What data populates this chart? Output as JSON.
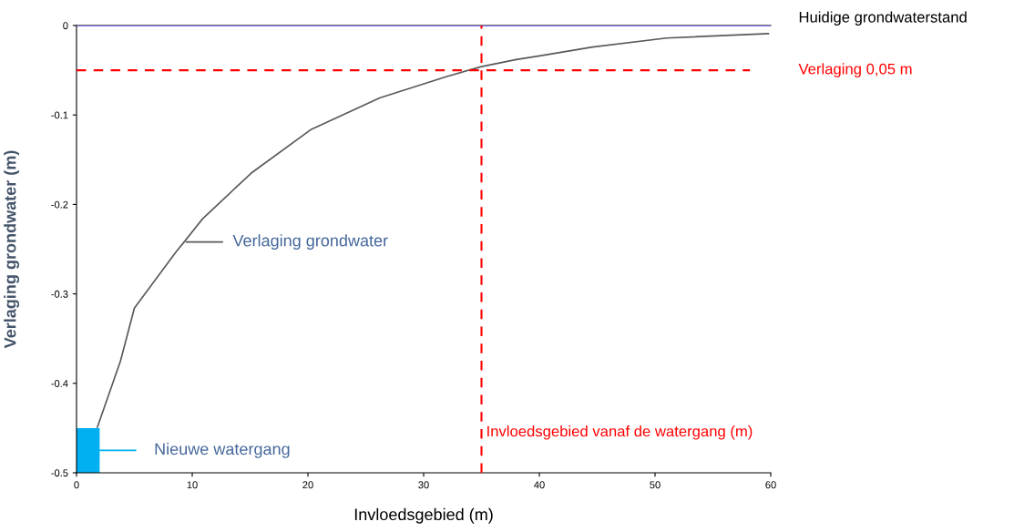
{
  "chart_data": {
    "type": "line",
    "xlabel": "Invloedsgebied (m)",
    "ylabel": "Verlaging grondwater (m)",
    "xlim": [
      0,
      60
    ],
    "ylim": [
      -0.5,
      0
    ],
    "xticks": [
      0,
      10,
      20,
      30,
      40,
      50,
      60
    ],
    "yticks": [
      -0.5,
      -0.4,
      -0.3,
      -0.2,
      -0.1,
      0
    ],
    "grid": false,
    "legend": "bottom left",
    "marker": "none",
    "line_style": "solid",
    "series": [
      {
        "name": "Verlaging grondwater",
        "color": "#595959",
        "x": [
          1.8,
          3.8,
          5.0,
          8.6,
          9.3,
          10.9,
          15.1,
          20.3,
          26.2,
          32.0,
          35.0,
          38.0,
          40.0,
          44.6,
          51.0,
          59.8
        ],
        "values": [
          -0.449,
          -0.375,
          -0.316,
          -0.253,
          -0.242,
          -0.216,
          -0.165,
          -0.116,
          -0.081,
          -0.057,
          -0.046,
          -0.038,
          -0.034,
          -0.024,
          -0.014,
          -0.009
        ]
      },
      {
        "type": "bar",
        "name": "Nieuwe watergang",
        "color": "#00b0f0",
        "x": [
          1
        ],
        "base": [
          -0.5
        ],
        "values": [
          0.05
        ]
      }
    ],
    "ref_lines": [
      {
        "axis": "y",
        "value": 0,
        "label": "Huidige grondwaterstand",
        "color": "#7b68ee",
        "line_style": "solid"
      },
      {
        "axis": "y",
        "value": -0.05,
        "label": "Verlaging 0,05 m",
        "color": "#ff0000",
        "line_style": "dashed"
      },
      {
        "axis": "x",
        "value": 35,
        "label": "Invloedsgebied vanaf de watergang (m)",
        "color": "#ff0000",
        "line_style": "dashed"
      }
    ]
  }
}
